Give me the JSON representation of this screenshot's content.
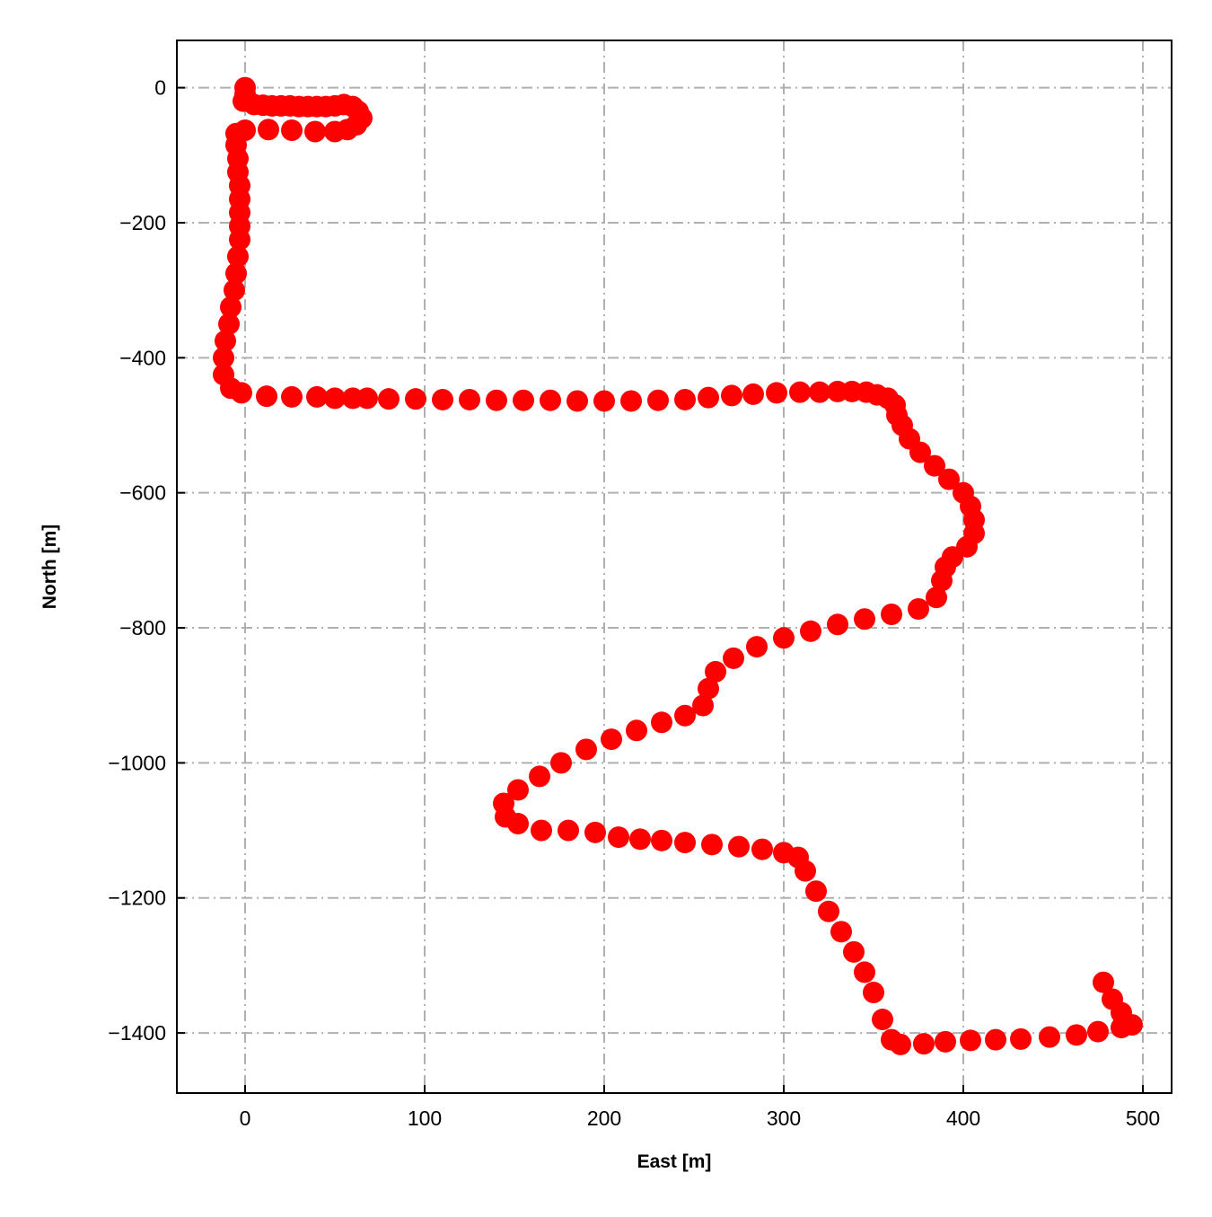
{
  "chart_data": {
    "type": "scatter",
    "xlabel": "East [m]",
    "ylabel": "North [m]",
    "color": "#ff0000",
    "grid": true,
    "x": [
      0,
      0,
      -1,
      5,
      10,
      15,
      20,
      25,
      30,
      35,
      40,
      45,
      50,
      55,
      60,
      63,
      65,
      62,
      57,
      50,
      39,
      26,
      13,
      0,
      -5,
      -5,
      -4,
      -4,
      -3,
      -3,
      -3,
      -3,
      -3,
      -4,
      -5,
      -6,
      -8,
      -9,
      -11,
      -12,
      -12,
      -8,
      -2,
      12,
      26,
      40,
      50,
      60,
      68,
      80,
      95,
      110,
      125,
      140,
      155,
      170,
      185,
      200,
      215,
      230,
      245,
      258,
      271,
      283,
      296,
      309,
      320,
      330,
      338,
      346,
      352,
      358,
      362,
      363,
      366,
      370,
      376,
      384,
      392,
      400,
      404,
      406,
      406,
      402,
      394,
      390,
      388,
      385,
      375,
      360,
      345,
      330,
      315,
      300,
      285,
      272,
      262,
      258,
      255,
      245,
      232,
      218,
      204,
      190,
      176,
      164,
      152,
      144,
      145,
      152,
      165,
      180,
      195,
      208,
      220,
      232,
      245,
      260,
      275,
      288,
      300,
      308,
      312,
      318,
      325,
      332,
      339,
      345,
      350,
      355,
      360,
      365,
      378,
      390,
      404,
      418,
      432,
      448,
      463,
      475,
      488,
      494,
      488,
      483,
      478
    ],
    "y": [
      0,
      -10,
      -20,
      -25,
      -26,
      -27,
      -27,
      -27,
      -28,
      -28,
      -28,
      -28,
      -27,
      -25,
      -28,
      -35,
      -45,
      -55,
      -62,
      -65,
      -65,
      -63,
      -62,
      -63,
      -68,
      -85,
      -105,
      -125,
      -145,
      -165,
      -185,
      -205,
      -225,
      -250,
      -275,
      -300,
      -325,
      -350,
      -375,
      -400,
      -425,
      -445,
      -452,
      -457,
      -458,
      -458,
      -460,
      -460,
      -460,
      -461,
      -461,
      -462,
      -462,
      -463,
      -463,
      -463,
      -464,
      -464,
      -464,
      -463,
      -462,
      -459,
      -456,
      -454,
      -452,
      -451,
      -451,
      -450,
      -450,
      -451,
      -455,
      -460,
      -470,
      -485,
      -500,
      -520,
      -540,
      -560,
      -580,
      -600,
      -620,
      -640,
      -660,
      -680,
      -695,
      -710,
      -730,
      -755,
      -772,
      -780,
      -787,
      -795,
      -805,
      -815,
      -828,
      -845,
      -865,
      -890,
      -915,
      -930,
      -940,
      -952,
      -965,
      -980,
      -1000,
      -1020,
      -1040,
      -1060,
      -1080,
      -1090,
      -1100,
      -1100,
      -1103,
      -1110,
      -1113,
      -1115,
      -1118,
      -1121,
      -1124,
      -1128,
      -1133,
      -1140,
      -1160,
      -1190,
      -1220,
      -1250,
      -1280,
      -1310,
      -1340,
      -1380,
      -1410,
      -1417,
      -1416,
      -1413,
      -1411,
      -1410,
      -1409,
      -1406,
      -1403,
      -1398,
      -1392,
      -1388,
      -1370,
      -1350,
      -1325
    ],
    "xlim": [
      -38,
      516
    ],
    "ylim": [
      -1489,
      70
    ],
    "xticks": [
      0,
      100,
      200,
      300,
      400,
      500
    ],
    "yticks": [
      0,
      {
        "value": -200,
        "label": "−200"
      },
      {
        "value": -400,
        "label": "−400"
      },
      {
        "value": -600,
        "label": "−600"
      },
      {
        "value": -800,
        "label": "−800"
      },
      {
        "value": -1000,
        "label": "−1000"
      },
      {
        "value": -1200,
        "label": "−1200"
      },
      {
        "value": -1400,
        "label": "−1400"
      }
    ]
  }
}
